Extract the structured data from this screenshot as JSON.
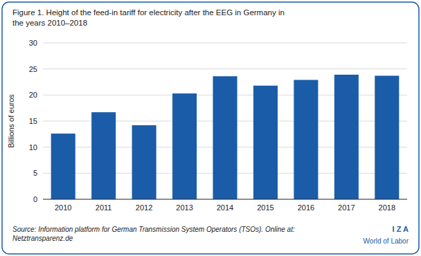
{
  "chart_data": {
    "type": "bar",
    "title": "Figure 1. Height of the feed-in tariff for electricity after the EEG in Germany in\nthe years 2010–2018",
    "y_label": "Billions of euros",
    "categories": [
      "2010",
      "2011",
      "2012",
      "2013",
      "2014",
      "2015",
      "2016",
      "2017",
      "2018"
    ],
    "values": [
      12.6,
      16.7,
      14.2,
      20.3,
      23.6,
      21.8,
      22.9,
      23.9,
      23.7
    ],
    "color": "#1a5ca8",
    "ylim": [
      0,
      30
    ],
    "yticks": [
      0,
      5,
      10,
      15,
      20,
      25,
      30
    ],
    "grid": true,
    "annotations": [
      "Source: Information platform for German Transmission System Operators (TSOs). Online at: Netztransparenz.de",
      "I Z A",
      "World of Labor"
    ]
  }
}
